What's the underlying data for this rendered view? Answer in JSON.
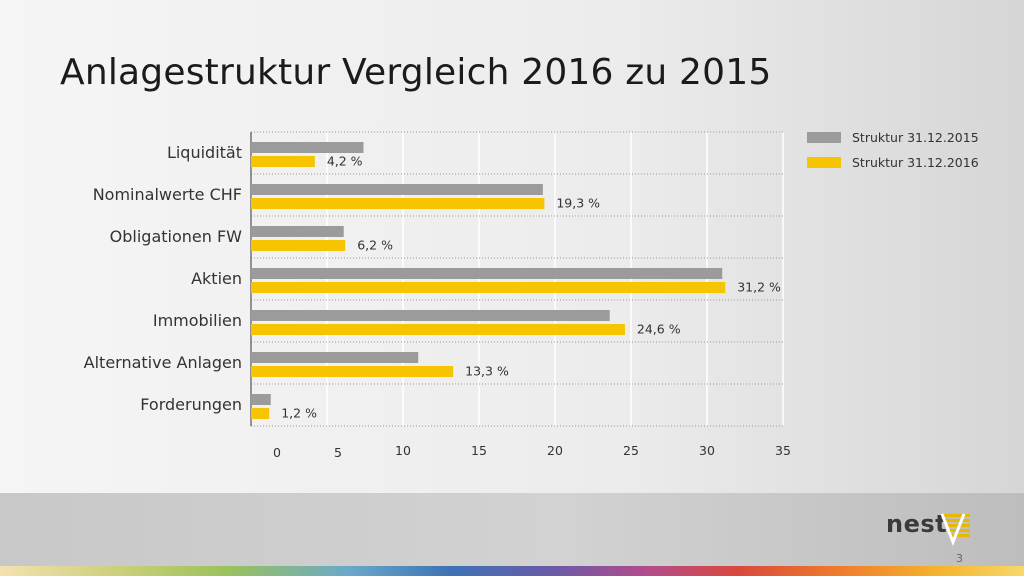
{
  "slide": {
    "title": "Anlagestruktur Vergleich 2016 zu 2015",
    "page_number": "3",
    "logo_text": "nest"
  },
  "colors": {
    "series_2015": "#9b9b9b",
    "series_2016": "#f6c400"
  },
  "chart_data": {
    "type": "bar",
    "orientation": "horizontal",
    "categories": [
      "Liquidität",
      "Nominalwerte CHF",
      "Obligationen FW",
      "Aktien",
      "Immobilien",
      "Alternative Anlagen",
      "Forderungen"
    ],
    "series": [
      {
        "name": "Struktur 31.12.2015",
        "values": [
          7.4,
          19.2,
          6.1,
          31.0,
          23.6,
          11.0,
          1.3
        ]
      },
      {
        "name": "Struktur 31.12.2016",
        "values": [
          4.2,
          19.3,
          6.2,
          31.2,
          24.6,
          13.3,
          1.2
        ]
      }
    ],
    "data_labels": [
      "4,2 %",
      "19,3 %",
      "6,2 %",
      "31,2 %",
      "24,6 %",
      "13,3 %",
      "1,2 %"
    ],
    "xticks": [
      "0",
      "5",
      "10",
      "15",
      "20",
      "25",
      "30",
      "35"
    ],
    "xlim": [
      0,
      35
    ],
    "grid": "vertical",
    "legend_position": "top-right"
  }
}
